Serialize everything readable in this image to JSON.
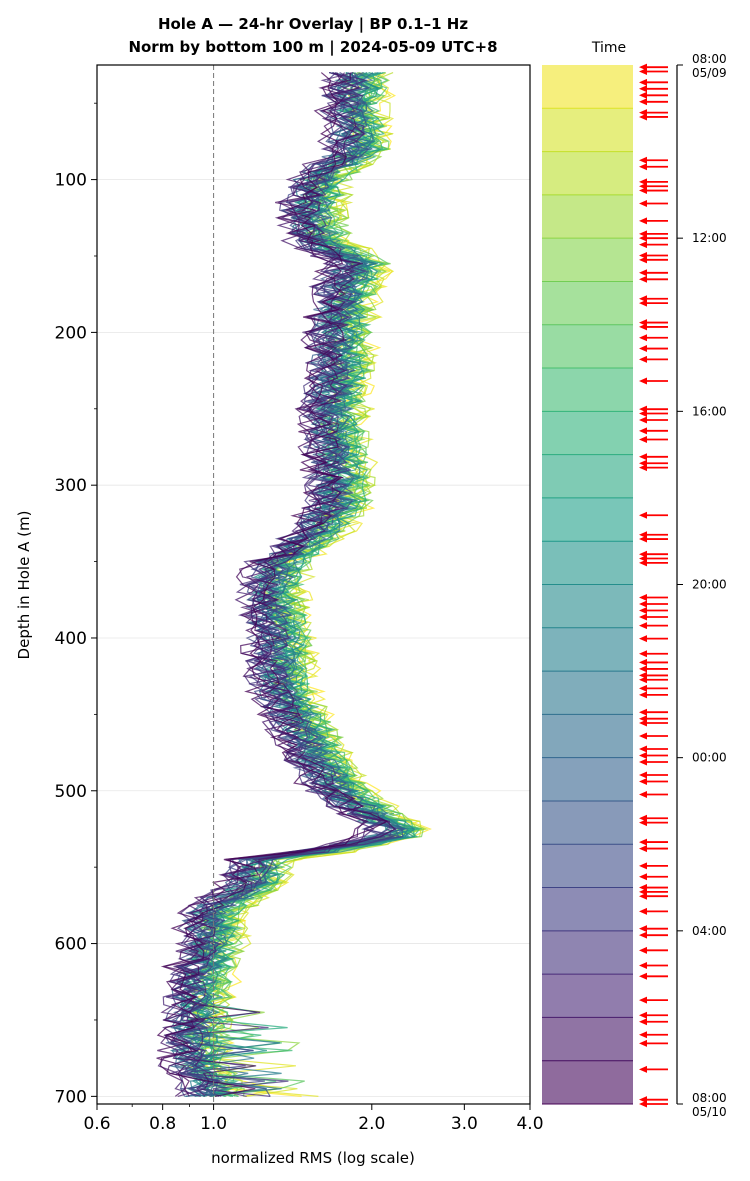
{
  "chart_data": {
    "type": "line",
    "title_line1": "Hole A — 24-hr Overlay  |  BP 0.1–1 Hz",
    "title_line2": "Norm by bottom 100 m  |  2024-05-09 UTC+8",
    "xlabel": "normalized RMS  (log scale)",
    "ylabel": "Depth in Hole A (m)",
    "x_scale": "log",
    "xlim": [
      0.6,
      4.0
    ],
    "ylim": [
      705,
      25
    ],
    "x_ticks": [
      "0.6",
      "0.8",
      "1.0",
      "2.0",
      "3.0",
      "4.0"
    ],
    "x_tick_values": [
      0.6,
      0.8,
      1.0,
      2.0,
      3.0,
      4.0
    ],
    "y_ticks": [
      "100",
      "200",
      "300",
      "400",
      "500",
      "600",
      "700"
    ],
    "y_tick_values": [
      100,
      200,
      300,
      400,
      500,
      600,
      700
    ],
    "reference_line_x": 1.0,
    "grid": "horizontal",
    "colormap": "viridis",
    "n_series": 48,
    "depth_step_m": 5,
    "depth_range_m": [
      30,
      700
    ],
    "representative_profile": {
      "depth_m": [
        30,
        50,
        80,
        100,
        120,
        140,
        155,
        170,
        200,
        230,
        260,
        290,
        310,
        330,
        350,
        370,
        400,
        430,
        460,
        480,
        500,
        515,
        528,
        540,
        545,
        560,
        580,
        600,
        620,
        640,
        660,
        680,
        690,
        700
      ],
      "rms": [
        1.9,
        1.85,
        1.9,
        1.6,
        1.55,
        1.6,
        1.9,
        1.8,
        1.75,
        1.75,
        1.7,
        1.75,
        1.75,
        1.6,
        1.35,
        1.3,
        1.35,
        1.35,
        1.5,
        1.6,
        1.75,
        2.0,
        2.3,
        1.6,
        1.25,
        1.2,
        1.0,
        1.0,
        0.95,
        0.95,
        0.93,
        0.93,
        1.0,
        1.0
      ]
    },
    "time_panel": {
      "label": "Time",
      "start_label": "08:00\n05/09",
      "tick_labels": [
        "08:00\n05/09",
        "12:00",
        "16:00",
        "20:00",
        "00:00",
        "04:00",
        "08:00\n05/10"
      ],
      "tick_hours": [
        0,
        4,
        8,
        12,
        16,
        20,
        24
      ],
      "hours_range": [
        0,
        24
      ],
      "bands": 24,
      "arrow_color": "#ff0000",
      "arrow_hours": [
        0.05,
        0.15,
        0.4,
        0.55,
        0.7,
        0.85,
        1.1,
        1.2,
        2.2,
        2.35,
        2.7,
        2.8,
        2.9,
        3.2,
        3.6,
        3.9,
        4.0,
        4.15,
        4.4,
        4.5,
        4.8,
        4.95,
        5.4,
        5.5,
        5.95,
        6.05,
        6.3,
        6.55,
        6.8,
        7.3,
        7.95,
        8.05,
        8.2,
        8.45,
        8.65,
        9.05,
        9.2,
        9.3,
        10.4,
        10.85,
        10.95,
        11.3,
        11.4,
        11.5,
        12.3,
        12.45,
        12.6,
        12.75,
        12.95,
        13.25,
        13.6,
        13.8,
        13.95,
        14.1,
        14.2,
        14.4,
        14.55,
        14.95,
        15.1,
        15.2,
        15.5,
        15.8,
        15.95,
        16.1,
        16.4,
        16.55,
        16.85,
        17.4,
        17.5,
        17.95,
        18.1,
        18.5,
        18.75,
        19.0,
        19.1,
        19.2,
        19.55,
        19.95,
        20.1,
        20.45,
        20.8,
        21.05,
        21.6,
        21.95,
        22.1,
        22.4,
        22.6,
        23.2,
        23.9,
        24.0
      ]
    }
  }
}
